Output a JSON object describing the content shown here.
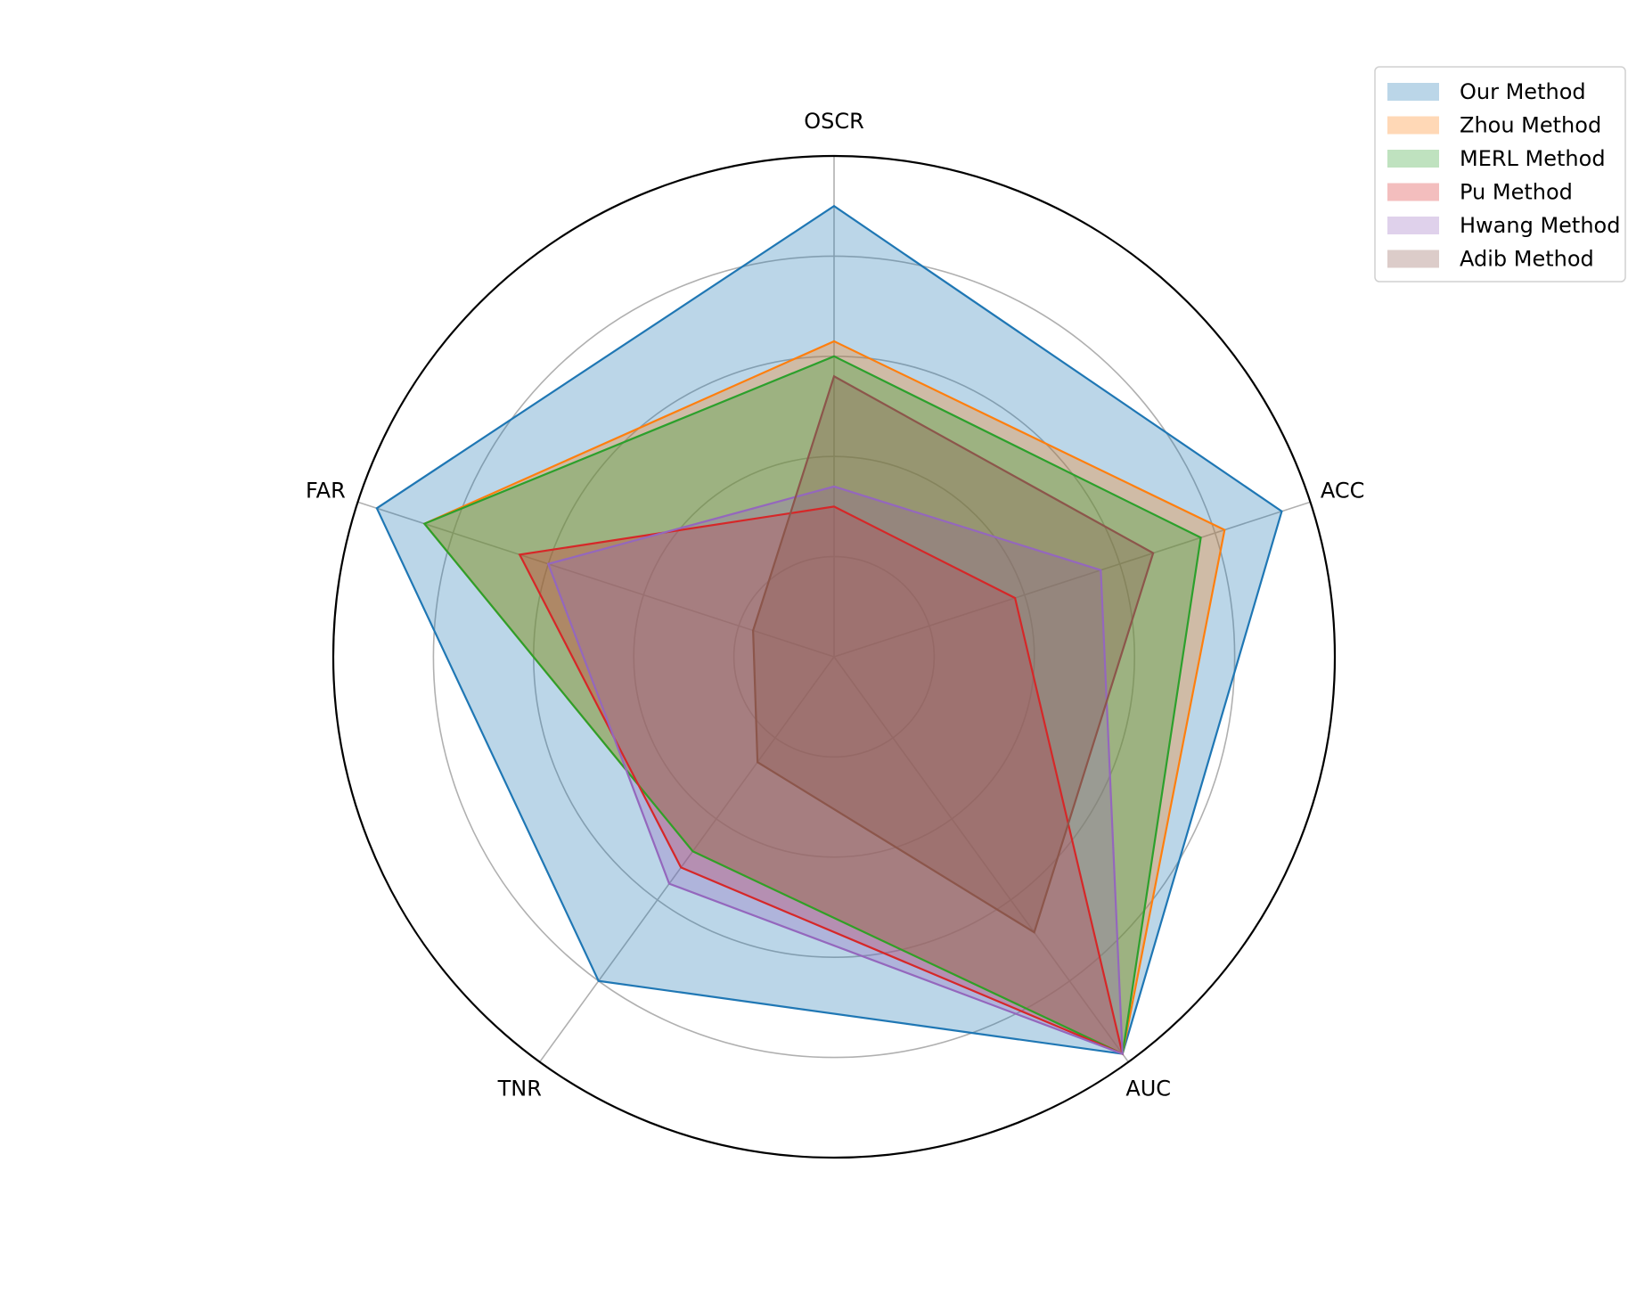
{
  "chart_data": {
    "type": "radar",
    "axes": [
      "ACC",
      "OSCR",
      "FAR",
      "TNR",
      "AUC"
    ],
    "rlim": [
      0,
      1
    ],
    "rgrid": [
      0.2,
      0.4,
      0.6,
      0.8
    ],
    "grid": true,
    "legend_position": "top-right",
    "series": [
      {
        "name": "Our Method",
        "color": "#1f77b4",
        "values": [
          0.94,
          0.9,
          0.96,
          0.8,
          0.98
        ]
      },
      {
        "name": "Zhou Method",
        "color": "#ff7f0e",
        "values": [
          0.82,
          0.63,
          0.86,
          0.48,
          0.98
        ]
      },
      {
        "name": "MERL Method",
        "color": "#2ca02c",
        "values": [
          0.77,
          0.6,
          0.86,
          0.48,
          0.98
        ]
      },
      {
        "name": "Pu Method",
        "color": "#d62728",
        "values": [
          0.38,
          0.3,
          0.66,
          0.52,
          0.98
        ]
      },
      {
        "name": "Hwang Method",
        "color": "#9467bd",
        "values": [
          0.56,
          0.34,
          0.6,
          0.56,
          0.98
        ]
      },
      {
        "name": "Adib Method",
        "color": "#8c564b",
        "values": [
          0.67,
          0.56,
          0.17,
          0.26,
          0.68
        ]
      }
    ]
  }
}
